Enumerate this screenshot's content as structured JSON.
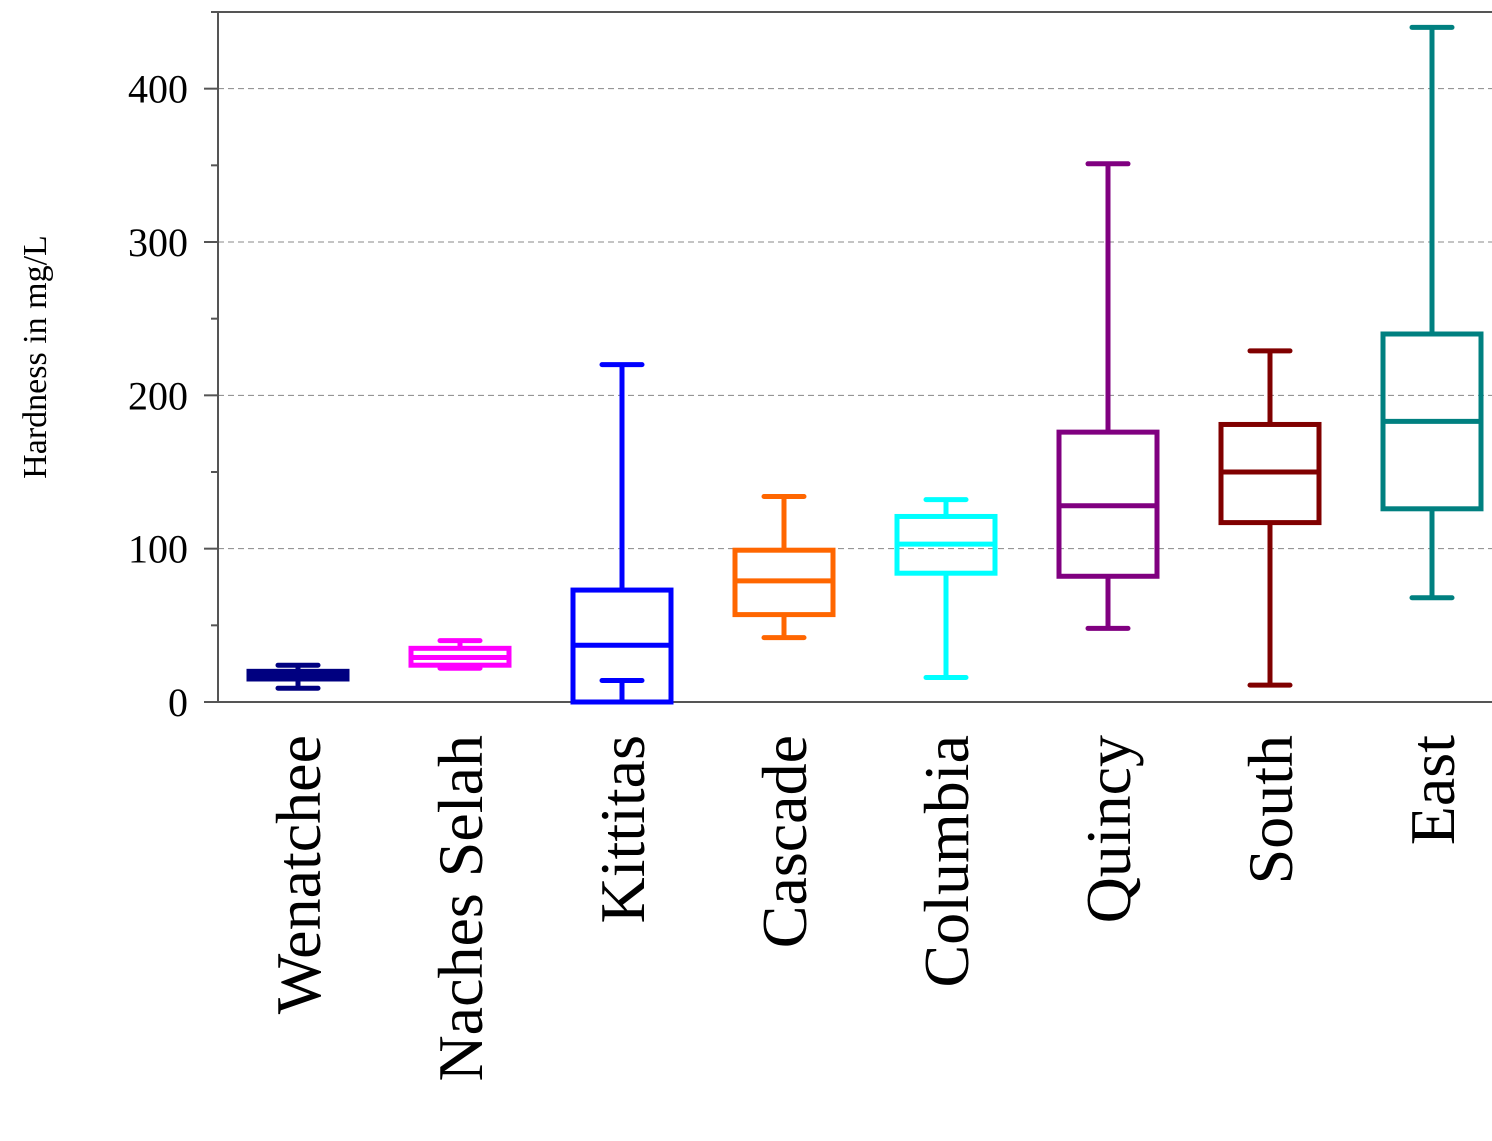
{
  "chart_data": {
    "type": "box",
    "title": "",
    "xlabel": "",
    "ylabel": "Hardness in mg/L",
    "ylim": [
      0,
      450
    ],
    "yticks": [
      0,
      100,
      200,
      300,
      400
    ],
    "ytick_labels": [
      "0",
      "100",
      "200",
      "300",
      "400"
    ],
    "grid": "horizontal-dashed",
    "legend": "none",
    "categories": [
      "Wenatchee",
      "Naches Selah",
      "Kittitas",
      "Cascade",
      "Columbia",
      "Quincy",
      "South",
      "East"
    ],
    "colors": [
      "#000080",
      "#ff00ff",
      "#0000ff",
      "#ff6600",
      "#00ffff",
      "#800080",
      "#800000",
      "#008080"
    ],
    "boxes": [
      {
        "min": 9,
        "q1": 15,
        "median": 17,
        "q3": 20,
        "max": 24
      },
      {
        "min": 22,
        "q1": 24,
        "median": 29,
        "q3": 35,
        "max": 40
      },
      {
        "min": 0,
        "q1": 0,
        "median": 37,
        "q3": 73,
        "max": 220,
        "lower_whisker_cap": 14
      },
      {
        "min": 42,
        "q1": 57,
        "median": 79,
        "q3": 99,
        "max": 134
      },
      {
        "min": 16,
        "q1": 84,
        "median": 103,
        "q3": 121,
        "max": 132
      },
      {
        "min": 48,
        "q1": 82,
        "median": 128,
        "q3": 176,
        "max": 351
      },
      {
        "min": 11,
        "q1": 117,
        "median": 150,
        "q3": 181,
        "max": 229
      },
      {
        "min": 68,
        "q1": 126,
        "median": 183,
        "q3": 240,
        "max": 440
      }
    ]
  }
}
